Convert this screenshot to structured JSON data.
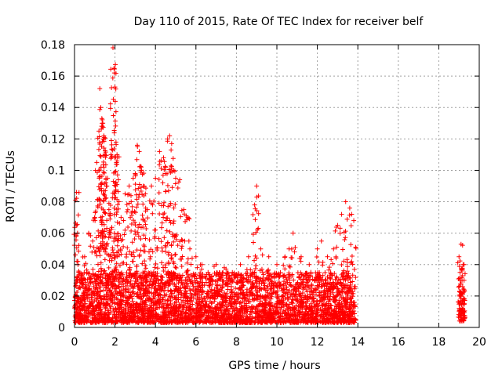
{
  "chart_data": {
    "type": "scatter",
    "title": "Day 110 of 2015, Rate Of TEC Index for receiver belf",
    "xlabel": "GPS time / hours",
    "ylabel": "ROTI / TECUs",
    "xlim": [
      0,
      20
    ],
    "ylim": [
      0,
      0.18
    ],
    "xticks": [
      0,
      2,
      4,
      6,
      8,
      10,
      12,
      14,
      16,
      18,
      20
    ],
    "yticks": [
      0,
      0.02,
      0.04,
      0.06,
      0.08,
      0.1,
      0.12,
      0.14,
      0.16,
      0.18
    ],
    "xtick_labels": [
      "0",
      "2",
      "4",
      "6",
      "8",
      "10",
      "12",
      "14",
      "16",
      "18",
      "20"
    ],
    "ytick_labels": [
      "0",
      "0.02",
      "0.04",
      "0.06",
      "0.08",
      "0.1",
      "0.12",
      "0.14",
      "0.16",
      "0.18"
    ],
    "grid": true,
    "marker": "+",
    "series": [
      {
        "name": "ROTI",
        "color": "#ff0000",
        "x": [
          0.05,
          0.1,
          0.15,
          0.2,
          0.1,
          0.12,
          0.3,
          0.5,
          0.7,
          0.9,
          1.0,
          1.1,
          1.2,
          1.25,
          1.3,
          1.35,
          1.4,
          1.45,
          1.5,
          1.55,
          1.6,
          1.7,
          1.8,
          1.9,
          1.95,
          2.0,
          2.05,
          2.1,
          2.2,
          2.3,
          2.5,
          2.7,
          2.8,
          2.9,
          3.0,
          3.1,
          3.2,
          3.3,
          3.4,
          3.5,
          3.6,
          3.8,
          4.0,
          4.2,
          4.4,
          4.5,
          4.6,
          4.7,
          4.8,
          4.9,
          5.0,
          5.2,
          5.4,
          5.6,
          5.7,
          6.0,
          6.3,
          6.6,
          7.0,
          7.4,
          7.8,
          8.2,
          8.6,
          8.9,
          9.0,
          9.2,
          9.6,
          10.0,
          10.4,
          10.6,
          10.8,
          11.2,
          11.6,
          12.0,
          12.2,
          12.5,
          12.8,
          13.0,
          13.2,
          13.4,
          13.6,
          13.8,
          19.0,
          19.1,
          19.2,
          19.15,
          19.05,
          19.25
        ],
        "y": [
          0.081,
          0.086,
          0.06,
          0.035,
          0.02,
          0.01,
          0.03,
          0.045,
          0.06,
          0.055,
          0.07,
          0.105,
          0.1,
          0.152,
          0.14,
          0.133,
          0.13,
          0.122,
          0.11,
          0.095,
          0.09,
          0.075,
          0.11,
          0.178,
          0.165,
          0.153,
          0.118,
          0.11,
          0.08,
          0.07,
          0.085,
          0.09,
          0.08,
          0.095,
          0.098,
          0.116,
          0.112,
          0.1,
          0.09,
          0.085,
          0.075,
          0.09,
          0.095,
          0.112,
          0.108,
          0.102,
          0.12,
          0.122,
          0.117,
          0.1,
          0.095,
          0.094,
          0.075,
          0.07,
          0.05,
          0.045,
          0.04,
          0.035,
          0.04,
          0.038,
          0.035,
          0.04,
          0.045,
          0.078,
          0.09,
          0.05,
          0.045,
          0.04,
          0.045,
          0.05,
          0.06,
          0.045,
          0.04,
          0.05,
          0.055,
          0.045,
          0.05,
          0.065,
          0.072,
          0.08,
          0.076,
          0.068,
          0.045,
          0.053,
          0.04,
          0.03,
          0.035,
          0.04
        ]
      }
    ],
    "dense_bands": [
      {
        "x_start": 0.0,
        "x_end": 13.9,
        "y_min": 0.003,
        "y_max": 0.035
      },
      {
        "x_start": 18.95,
        "x_end": 19.3,
        "y_min": 0.004,
        "y_max": 0.03
      }
    ]
  }
}
